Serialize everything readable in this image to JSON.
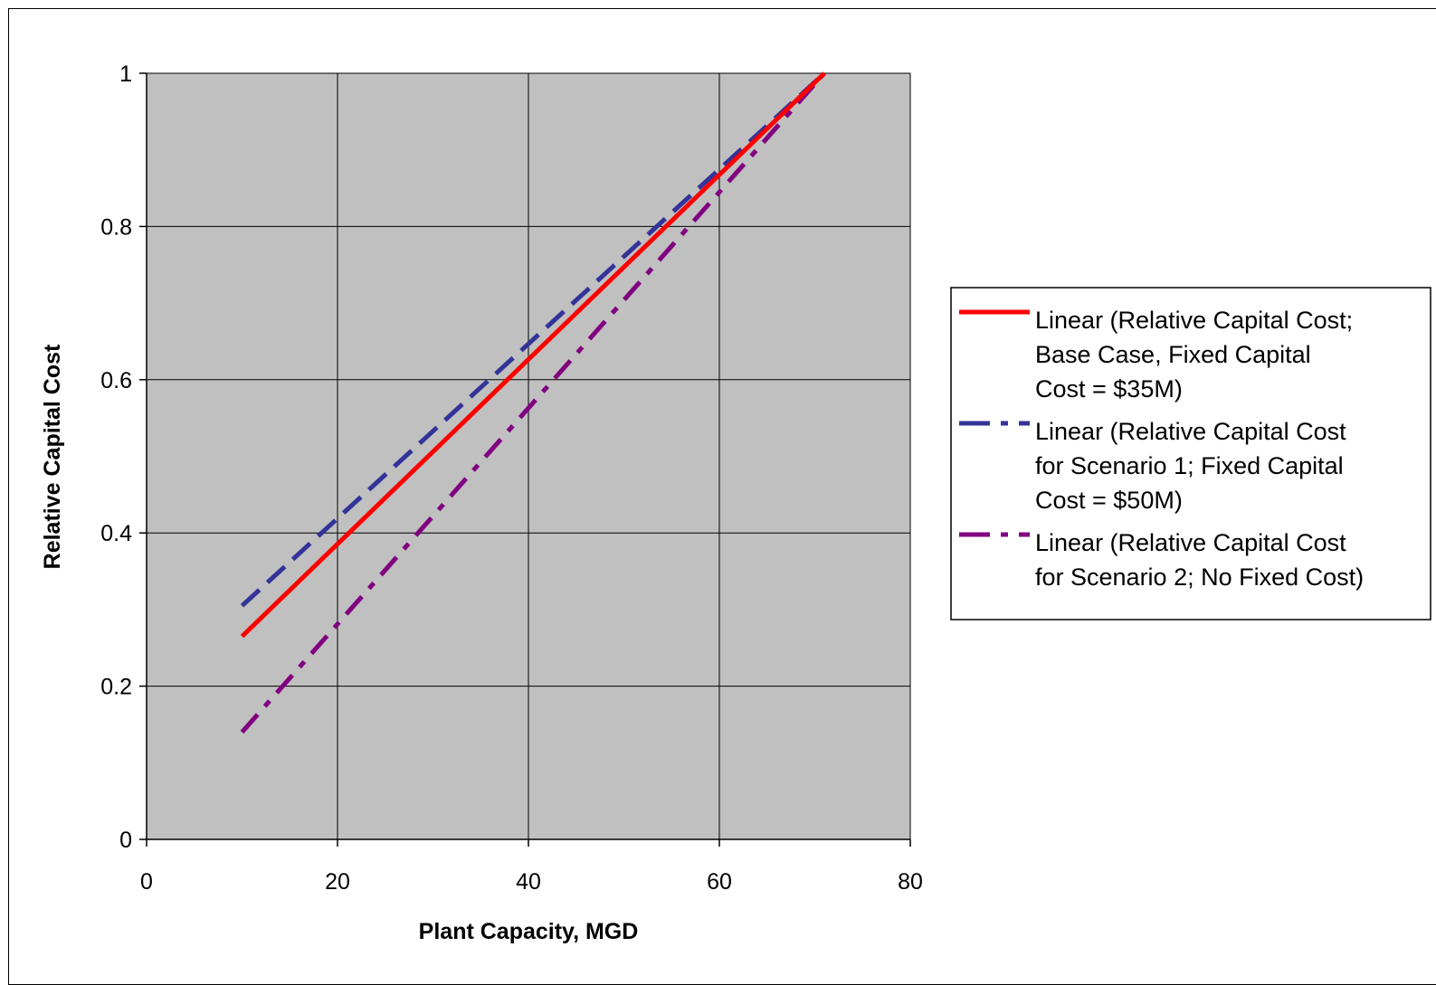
{
  "chart_data": {
    "type": "line",
    "title": "",
    "xlabel": "Plant Capacity, MGD",
    "ylabel": "Relative Capital Cost",
    "xlim": [
      0,
      80
    ],
    "ylim": [
      0,
      1
    ],
    "x_ticks": [
      0,
      20,
      40,
      60,
      80
    ],
    "y_ticks": [
      0,
      0.2,
      0.4,
      0.6,
      0.8,
      1
    ],
    "x_tick_labels": [
      "0",
      "20",
      "40",
      "60",
      "80"
    ],
    "y_tick_labels": [
      "0",
      "0.2",
      "0.4",
      "0.6",
      "0.8",
      "1"
    ],
    "grid": true,
    "plot_background": "#C0C0C0",
    "legend_position": "right",
    "series": [
      {
        "name": "Linear (Relative Capital Cost; Base Case, Fixed Capital Cost = $35M)",
        "legend_lines": [
          "Linear (Relative Capital Cost;",
          "Base Case, Fixed Capital",
          "Cost = $35M)"
        ],
        "color": "#FF0000",
        "dash": "solid",
        "x": [
          10,
          71
        ],
        "y": [
          0.265,
          1.0
        ]
      },
      {
        "name": "Linear (Relative Capital Cost for Scenario 1; Fixed Capital Cost = $50M)",
        "legend_lines": [
          "Linear (Relative Capital Cost",
          "for Scenario 1; Fixed Capital",
          "Cost = $50M)"
        ],
        "color": "#333399",
        "dash": "long-dash",
        "x": [
          10,
          71
        ],
        "y": [
          0.305,
          1.0
        ]
      },
      {
        "name": "Linear (Relative Capital Cost for Scenario 2; No Fixed Cost)",
        "legend_lines": [
          "Linear (Relative Capital Cost",
          "for Scenario 2; No Fixed Cost)"
        ],
        "color": "#800080",
        "dash": "dash-dot",
        "x": [
          10,
          71
        ],
        "y": [
          0.14,
          1.0
        ]
      }
    ]
  }
}
